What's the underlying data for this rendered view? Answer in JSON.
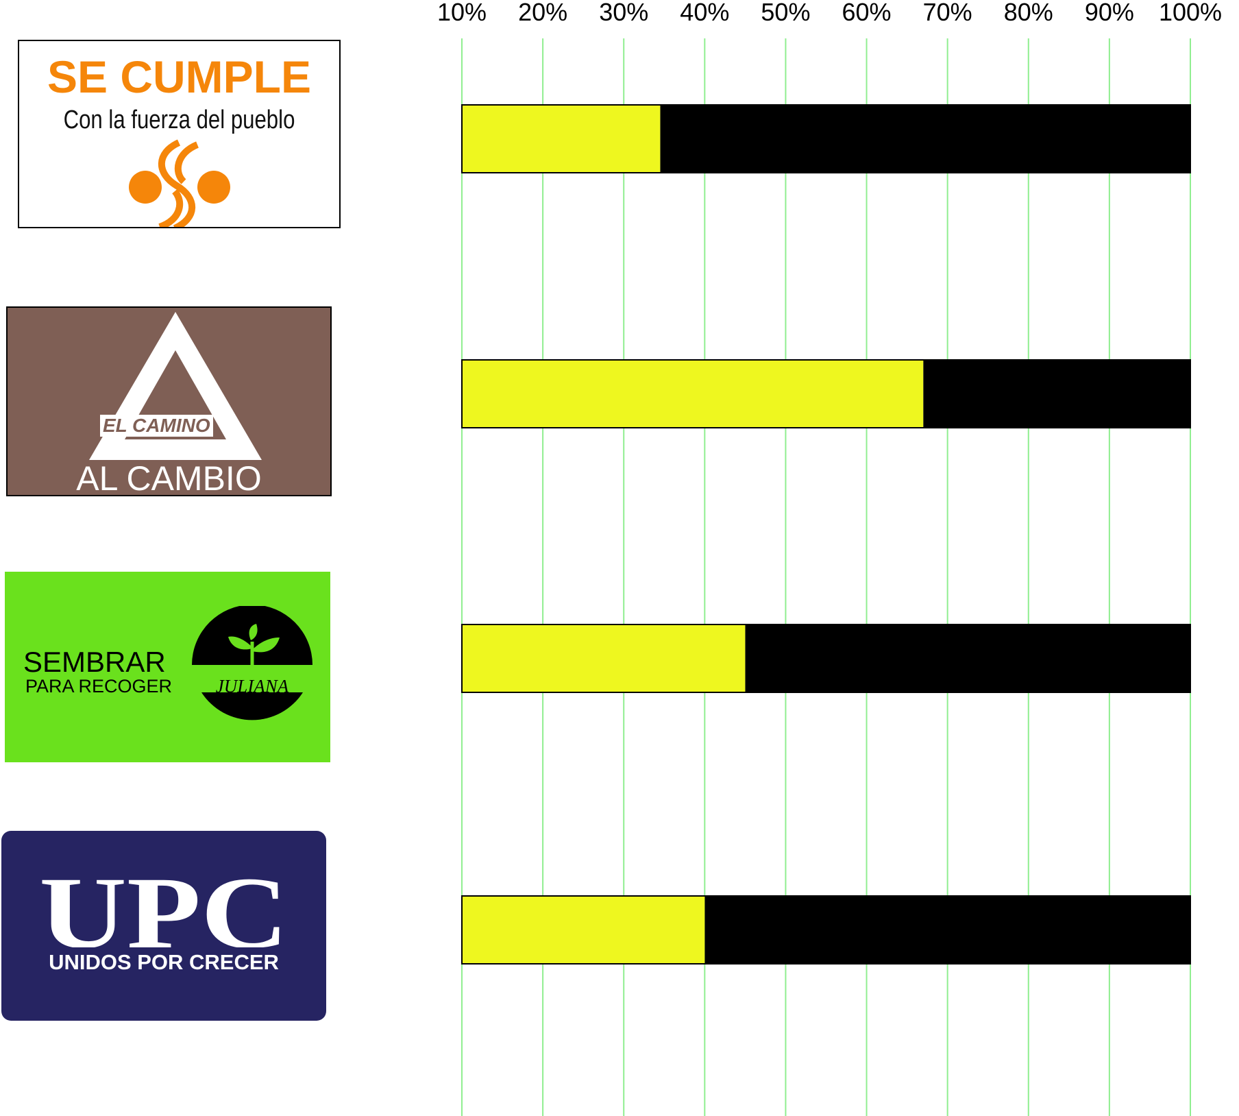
{
  "colors": {
    "grid": "#90ee90",
    "fill": "#eef71f",
    "remainder": "#000000",
    "logo_orange": "#f5860a",
    "logo_brown": "#7f5f55",
    "logo_green": "#6ae11d",
    "logo_navy": "#262462"
  },
  "logos": [
    {
      "title": "SE CUMPLE",
      "subtitle": "Con la fuerza del pueblo",
      "icon": "orange-circles-emblem"
    },
    {
      "top": "EL CAMINO",
      "bottom": "AL CAMBIO",
      "icon": "triangle-emblem"
    },
    {
      "line1": "SEMBRAR",
      "line2": "PARA RECOGER",
      "badge": "JULIANA",
      "icon": "sprout-emblem"
    },
    {
      "title": "UPC",
      "subtitle": "UNIDOS POR CRECER"
    }
  ],
  "chart_data": {
    "type": "bar",
    "orientation": "horizontal",
    "stacked_to": 100,
    "xlim": [
      10,
      100
    ],
    "x_ticks": [
      10,
      20,
      30,
      40,
      50,
      60,
      70,
      80,
      90,
      100
    ],
    "x_tick_labels": [
      "10%",
      "20%",
      "30%",
      "40%",
      "50%",
      "60%",
      "70%",
      "80%",
      "90%",
      "100%"
    ],
    "x_axis_position": "top",
    "grid": true,
    "categories": [
      "SE CUMPLE",
      "EL CAMINO AL CAMBIO",
      "SEMBRAR PARA RECOGER",
      "UPC UNIDOS POR CRECER"
    ],
    "values": [
      34.5,
      67,
      45,
      40
    ],
    "title": "",
    "xlabel": "",
    "ylabel": ""
  }
}
